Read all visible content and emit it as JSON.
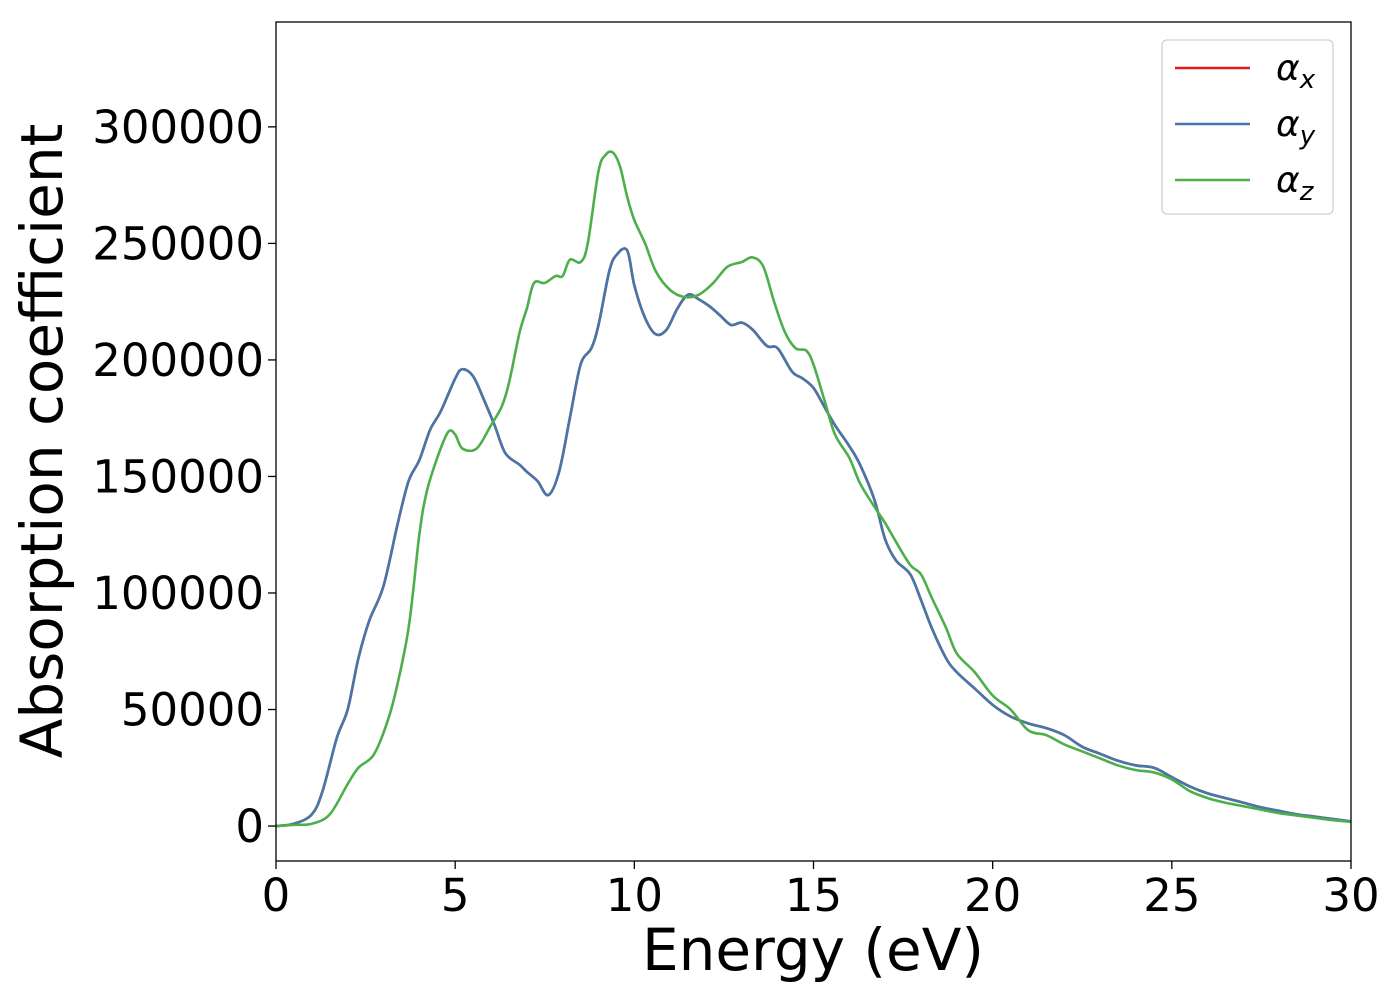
{
  "chart_data": {
    "type": "line",
    "xlabel": "Energy (eV)",
    "ylabel": "Absorption coefficient",
    "xlim": [
      0,
      30
    ],
    "ylim": [
      -15000,
      345000
    ],
    "xticks": [
      0,
      5,
      10,
      15,
      20,
      25,
      30
    ],
    "yticks": [
      0,
      50000,
      100000,
      150000,
      200000,
      250000,
      300000
    ],
    "grid": false,
    "legend_position": "top-right",
    "series": [
      {
        "name": "αx",
        "legend_symbol": "α",
        "legend_subscript": "x",
        "color": "#e41a1c",
        "x": [
          0,
          0.5,
          1.0,
          1.3,
          1.7,
          2.0,
          2.3,
          2.6,
          3.0,
          3.4,
          3.7,
          4.0,
          4.3,
          4.6,
          5.0,
          5.2,
          5.5,
          5.8,
          6.1,
          6.4,
          6.8,
          7.0,
          7.3,
          7.6,
          7.9,
          8.2,
          8.5,
          8.8,
          9.0,
          9.3,
          9.5,
          9.8,
          10.0,
          10.3,
          10.6,
          10.9,
          11.2,
          11.5,
          11.8,
          12.1,
          12.4,
          12.7,
          13.0,
          13.3,
          13.7,
          14.0,
          14.4,
          14.7,
          15.0,
          15.3,
          15.6,
          16.0,
          16.3,
          16.7,
          17.0,
          17.3,
          17.7,
          18.0,
          18.3,
          18.7,
          19.0,
          19.5,
          20.0,
          20.5,
          21.0,
          21.5,
          22.0,
          22.5,
          23.0,
          23.5,
          24.0,
          24.5,
          25.0,
          25.5,
          26.0,
          26.5,
          27.0,
          27.5,
          28.0,
          28.5,
          29.0,
          29.5,
          30.0
        ],
        "y": [
          0,
          1000,
          5000,
          15000,
          38000,
          50000,
          72000,
          88000,
          103000,
          130000,
          148000,
          157000,
          170000,
          178000,
          192000,
          196000,
          193000,
          183000,
          172000,
          160000,
          155000,
          152000,
          148000,
          142000,
          152000,
          175000,
          198000,
          205000,
          215000,
          238000,
          245000,
          247000,
          232000,
          218000,
          211000,
          213000,
          222000,
          228000,
          226000,
          223000,
          219000,
          215000,
          216000,
          213000,
          206000,
          205000,
          195000,
          192000,
          188000,
          180000,
          172000,
          163000,
          155000,
          140000,
          123000,
          114000,
          108000,
          97000,
          85000,
          72000,
          66000,
          59000,
          52000,
          47000,
          44000,
          42000,
          39000,
          34000,
          31000,
          28000,
          26000,
          25000,
          21000,
          17000,
          14000,
          12000,
          10000,
          8000,
          6500,
          5000,
          4000,
          3000,
          2000
        ]
      },
      {
        "name": "αy",
        "legend_symbol": "α",
        "legend_subscript": "y",
        "color": "#4477aa",
        "x": [
          0,
          0.5,
          1.0,
          1.3,
          1.7,
          2.0,
          2.3,
          2.6,
          3.0,
          3.4,
          3.7,
          4.0,
          4.3,
          4.6,
          5.0,
          5.2,
          5.5,
          5.8,
          6.1,
          6.4,
          6.8,
          7.0,
          7.3,
          7.6,
          7.9,
          8.2,
          8.5,
          8.8,
          9.0,
          9.3,
          9.5,
          9.8,
          10.0,
          10.3,
          10.6,
          10.9,
          11.2,
          11.5,
          11.8,
          12.1,
          12.4,
          12.7,
          13.0,
          13.3,
          13.7,
          14.0,
          14.4,
          14.7,
          15.0,
          15.3,
          15.6,
          16.0,
          16.3,
          16.7,
          17.0,
          17.3,
          17.7,
          18.0,
          18.3,
          18.7,
          19.0,
          19.5,
          20.0,
          20.5,
          21.0,
          21.5,
          22.0,
          22.5,
          23.0,
          23.5,
          24.0,
          24.5,
          25.0,
          25.5,
          26.0,
          26.5,
          27.0,
          27.5,
          28.0,
          28.5,
          29.0,
          29.5,
          30.0
        ],
        "y": [
          0,
          1000,
          5000,
          15000,
          38000,
          50000,
          72000,
          88000,
          103000,
          130000,
          148000,
          157000,
          170000,
          178000,
          192000,
          196000,
          193000,
          183000,
          172000,
          160000,
          155000,
          152000,
          148000,
          142000,
          152000,
          175000,
          198000,
          205000,
          215000,
          238000,
          245000,
          247000,
          232000,
          218000,
          211000,
          213000,
          222000,
          228000,
          226000,
          223000,
          219000,
          215000,
          216000,
          213000,
          206000,
          205000,
          195000,
          192000,
          188000,
          180000,
          172000,
          163000,
          155000,
          140000,
          123000,
          114000,
          108000,
          97000,
          85000,
          72000,
          66000,
          59000,
          52000,
          47000,
          44000,
          42000,
          39000,
          34000,
          31000,
          28000,
          26000,
          25000,
          21000,
          17000,
          14000,
          12000,
          10000,
          8000,
          6500,
          5000,
          4000,
          3000,
          2000
        ]
      },
      {
        "name": "αz",
        "legend_symbol": "α",
        "legend_subscript": "z",
        "color": "#4daf4a",
        "x": [
          0,
          0.5,
          1.0,
          1.5,
          2.0,
          2.3,
          2.7,
          3.0,
          3.3,
          3.7,
          4.0,
          4.2,
          4.5,
          4.8,
          5.0,
          5.2,
          5.6,
          6.0,
          6.3,
          6.5,
          6.8,
          7.0,
          7.2,
          7.5,
          7.8,
          8.0,
          8.2,
          8.5,
          8.7,
          9.0,
          9.2,
          9.4,
          9.6,
          9.8,
          10.0,
          10.3,
          10.6,
          11.0,
          11.4,
          11.8,
          12.2,
          12.6,
          13.0,
          13.3,
          13.6,
          13.9,
          14.2,
          14.5,
          14.8,
          15.0,
          15.3,
          15.6,
          16.0,
          16.3,
          16.7,
          17.0,
          17.3,
          17.7,
          18.0,
          18.3,
          18.7,
          19.0,
          19.5,
          20.0,
          20.5,
          21.0,
          21.5,
          22.0,
          22.5,
          23.0,
          23.5,
          24.0,
          24.5,
          25.0,
          25.5,
          26.0,
          26.5,
          27.0,
          27.5,
          28.0,
          28.5,
          29.0,
          29.5,
          30.0
        ],
        "y": [
          0,
          500,
          1000,
          5000,
          18000,
          25000,
          30000,
          40000,
          55000,
          85000,
          125000,
          143000,
          158000,
          169000,
          168000,
          162000,
          162000,
          172000,
          180000,
          190000,
          212000,
          222000,
          233000,
          233000,
          236000,
          236000,
          243000,
          242000,
          250000,
          281000,
          288000,
          289000,
          283000,
          270000,
          260000,
          250000,
          238000,
          230000,
          227000,
          228000,
          233000,
          240000,
          242000,
          244000,
          240000,
          225000,
          212000,
          205000,
          204000,
          198000,
          183000,
          168000,
          158000,
          147000,
          137000,
          130000,
          122000,
          112000,
          108000,
          98000,
          85000,
          74000,
          66000,
          56000,
          50000,
          41000,
          39000,
          35000,
          32000,
          29000,
          26000,
          24000,
          23000,
          20000,
          15000,
          12000,
          10000,
          8500,
          7000,
          5500,
          4500,
          3500,
          2500,
          1800
        ]
      }
    ]
  }
}
